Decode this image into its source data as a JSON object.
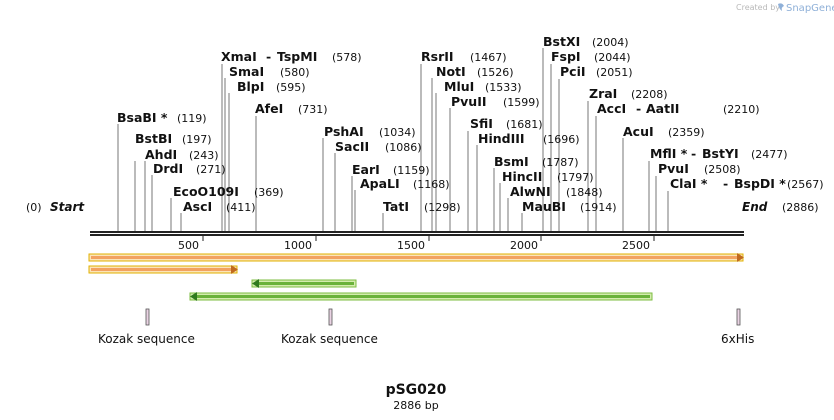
{
  "header": {
    "created_by": "Created by",
    "brand": "SnapGene"
  },
  "sequence": {
    "start_label": "Start",
    "end_label": "End",
    "start_pos": "(0)",
    "end_pos": "(2886)",
    "ticks": [
      "500",
      "1000",
      "1500",
      "2000",
      "2500"
    ]
  },
  "sites": [
    {
      "name": "XmaI",
      "pos": "(578)",
      "partner": "TspMI"
    },
    {
      "name": "SmaI",
      "pos": "(580)"
    },
    {
      "name": "BlpI",
      "pos": "(595)"
    },
    {
      "name": "AfeI",
      "pos": "(731)"
    },
    {
      "name": "BsaBI *",
      "pos": "(119)"
    },
    {
      "name": "BstBI",
      "pos": "(197)"
    },
    {
      "name": "AhdI",
      "pos": "(243)"
    },
    {
      "name": "DrdI",
      "pos": "(271)"
    },
    {
      "name": "EcoO109I",
      "pos": "(369)"
    },
    {
      "name": "AscI",
      "pos": "(411)"
    },
    {
      "name": "PshAI",
      "pos": "(1034)"
    },
    {
      "name": "SacII",
      "pos": "(1086)"
    },
    {
      "name": "EarI",
      "pos": "(1159)"
    },
    {
      "name": "ApaLI",
      "pos": "(1168)"
    },
    {
      "name": "TatI",
      "pos": "(1298)"
    },
    {
      "name": "RsrII",
      "pos": "(1467)"
    },
    {
      "name": "NotI",
      "pos": "(1526)"
    },
    {
      "name": "MluI",
      "pos": "(1533)"
    },
    {
      "name": "PvuII",
      "pos": "(1599)"
    },
    {
      "name": "SfiI",
      "pos": "(1681)"
    },
    {
      "name": "HindIII",
      "pos": "(1696)"
    },
    {
      "name": "BsmI",
      "pos": "(1787)"
    },
    {
      "name": "HincII",
      "pos": "(1797)"
    },
    {
      "name": "AlwNI",
      "pos": "(1848)"
    },
    {
      "name": "MauBI",
      "pos": "(1914)"
    },
    {
      "name": "BstXI",
      "pos": "(2004)"
    },
    {
      "name": "FspI",
      "pos": "(2044)"
    },
    {
      "name": "PciI",
      "pos": "(2051)"
    },
    {
      "name": "ZraI",
      "pos": "(2208)"
    },
    {
      "name": "AccI",
      "pos": "(2210)",
      "partner": "AatII"
    },
    {
      "name": "AcuI",
      "pos": "(2359)"
    },
    {
      "name": "MflI *",
      "pos": "(2477)",
      "partner": "BstYI"
    },
    {
      "name": "PvuI",
      "pos": "(2508)"
    },
    {
      "name": "ClaI *",
      "pos": "(2567)",
      "partner": "BspDI *"
    }
  ],
  "features": [
    {
      "label": "Kozak sequence"
    },
    {
      "label": "Kozak sequence"
    },
    {
      "label": "6xHis"
    }
  ],
  "plasmid": {
    "name": "pSG020",
    "length": "2886 bp"
  },
  "colors": {
    "orf": "#f4b27a",
    "orf_outline": "#d4a600",
    "green": "#9ccc4e",
    "green_edge": "#2f7a1e"
  }
}
